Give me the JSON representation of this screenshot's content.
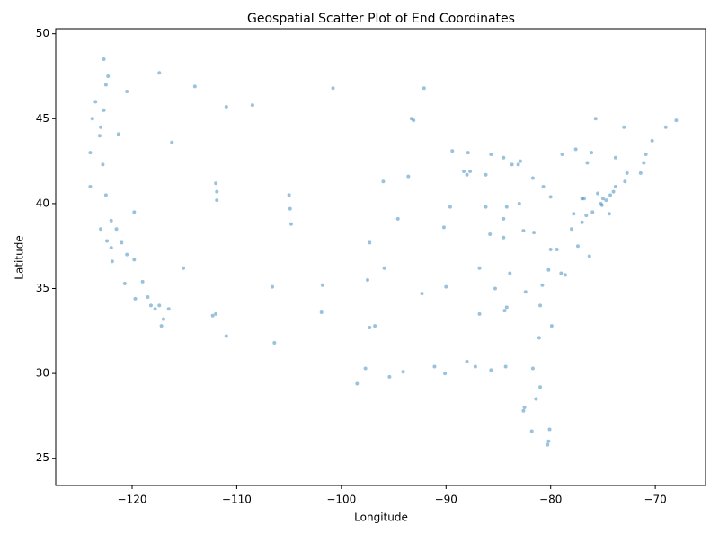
{
  "chart_data": {
    "type": "scatter",
    "title": "Geospatial Scatter Plot of End Coordinates",
    "x_label": "Longitude",
    "y_label": "Latitude",
    "color": "#1f77b4",
    "xlim": [
      -127.3,
      -65.2
    ],
    "ylim": [
      23.4,
      50.3
    ],
    "xticks": [
      {
        "value": -120,
        "label": "−120"
      },
      {
        "value": -110,
        "label": "−110"
      },
      {
        "value": -100,
        "label": "−100"
      },
      {
        "value": -90,
        "label": "−90"
      },
      {
        "value": -80,
        "label": "−80"
      },
      {
        "value": -70,
        "label": "−70"
      }
    ],
    "yticks": [
      25,
      30,
      35,
      40,
      45,
      50
    ],
    "x": [
      -124,
      -124,
      -123.8,
      -123,
      -122.7,
      -122.3,
      -122.5,
      -122.7,
      -123.5,
      -122.5,
      -122,
      -122.4,
      -122,
      -121.5,
      -121,
      -120.5,
      -119.8,
      -119,
      -118.5,
      -118.2,
      -117.8,
      -117.2,
      -117.4,
      -116.5,
      -117,
      -121.9,
      -120.7,
      -119.7,
      -123,
      -122.8,
      -123.1,
      -121.3,
      -120.5,
      -117.4,
      -116.2,
      -112,
      -111,
      -112.3,
      -111.9,
      -111.9,
      -112,
      -115.1,
      -119.8,
      -104.9,
      -105,
      -104.8,
      -106.6,
      -106.4,
      -108.5,
      -111,
      -114,
      -100.8,
      -96.8,
      -97.3,
      -95.4,
      -98.5,
      -97.7,
      -94.1,
      -101.8,
      -101.9,
      -97.5,
      -95.9,
      -94.6,
      -90.2,
      -93.3,
      -93.1,
      -92.1,
      -87.9,
      -87.7,
      -88,
      -86.2,
      -84.5,
      -83,
      -81.7,
      -83.1,
      -85.7,
      -84.4,
      -84.2,
      -86.8,
      -86.8,
      -90,
      -90.1,
      -91.1,
      -88,
      -87.2,
      -85.7,
      -84.3,
      -81.7,
      -82.5,
      -81.4,
      -80.2,
      -80.1,
      -80.3,
      -81.8,
      -82.6,
      -81,
      -80.8,
      -80.2,
      -78.6,
      -79,
      -77.4,
      -76.3,
      -77,
      -76.6,
      -75.2,
      -74.7,
      -74,
      -73.8,
      -72.9,
      -72.7,
      -71.4,
      -71.1,
      -73.8,
      -76.1,
      -77.6,
      -78.9,
      -80,
      -77,
      -75.5,
      -79.9,
      -81,
      -82.4,
      -81.1,
      -83.9,
      -85.3,
      -84.5,
      -85.8,
      -89.6,
      -93.6,
      -96,
      -97.3,
      -92.3,
      -89.4,
      -70.9,
      -70.3,
      -69,
      -73,
      -68,
      -75.7,
      -75.1,
      -74.4,
      -76.5,
      -80.7,
      -82.9,
      -83.7,
      -84.5,
      -86.2,
      -88.3,
      -84.2,
      -82.6,
      -81.6,
      -78,
      -79.4,
      -80,
      -76,
      -77.8,
      -76.8,
      -74.3,
      -75
    ],
    "values": [
      41,
      43,
      45,
      44.5,
      45.5,
      47.5,
      47,
      48.5,
      46,
      40.5,
      39,
      37.8,
      37.4,
      38.5,
      37.7,
      37,
      36.7,
      35.4,
      34.5,
      34,
      33.8,
      32.8,
      34,
      33.8,
      33.2,
      36.6,
      35.3,
      34.4,
      38.5,
      42.3,
      44,
      44.1,
      46.6,
      47.7,
      43.6,
      33.5,
      32.2,
      33.4,
      40.7,
      40.2,
      41.2,
      36.2,
      39.5,
      39.7,
      40.5,
      38.8,
      35.1,
      31.8,
      45.8,
      45.7,
      46.9,
      46.8,
      32.8,
      32.7,
      29.8,
      29.4,
      30.3,
      30.1,
      35.2,
      33.6,
      35.5,
      36.2,
      39.1,
      38.6,
      45,
      44.9,
      46.8,
      43,
      41.9,
      41.7,
      39.8,
      39.1,
      40,
      41.5,
      42.3,
      42.9,
      33.7,
      33.9,
      33.5,
      36.2,
      35.1,
      30,
      30.4,
      30.7,
      30.4,
      30.2,
      30.4,
      30.3,
      28,
      28.5,
      26,
      26.7,
      25.8,
      26.6,
      27.8,
      29.2,
      35.2,
      36.1,
      35.8,
      35.9,
      37.5,
      36.9,
      38.9,
      39.3,
      40,
      40.2,
      40.7,
      41,
      41.3,
      41.8,
      41.8,
      42.4,
      42.7,
      43,
      43.2,
      42.9,
      40.4,
      40.3,
      40.6,
      32.8,
      34,
      34.8,
      32.1,
      35.9,
      35,
      38,
      38.2,
      39.8,
      41.6,
      41.3,
      37.7,
      34.7,
      43.1,
      42.9,
      43.7,
      44.5,
      44.5,
      44.9,
      45,
      39.9,
      39.4,
      42.4,
      41,
      42.5,
      42.3,
      42.7,
      41.7,
      41.9,
      39.8,
      38.4,
      38.3,
      38.5,
      37.3,
      37.3,
      39.5,
      39.4,
      40.3,
      40.5,
      40.3
    ]
  }
}
